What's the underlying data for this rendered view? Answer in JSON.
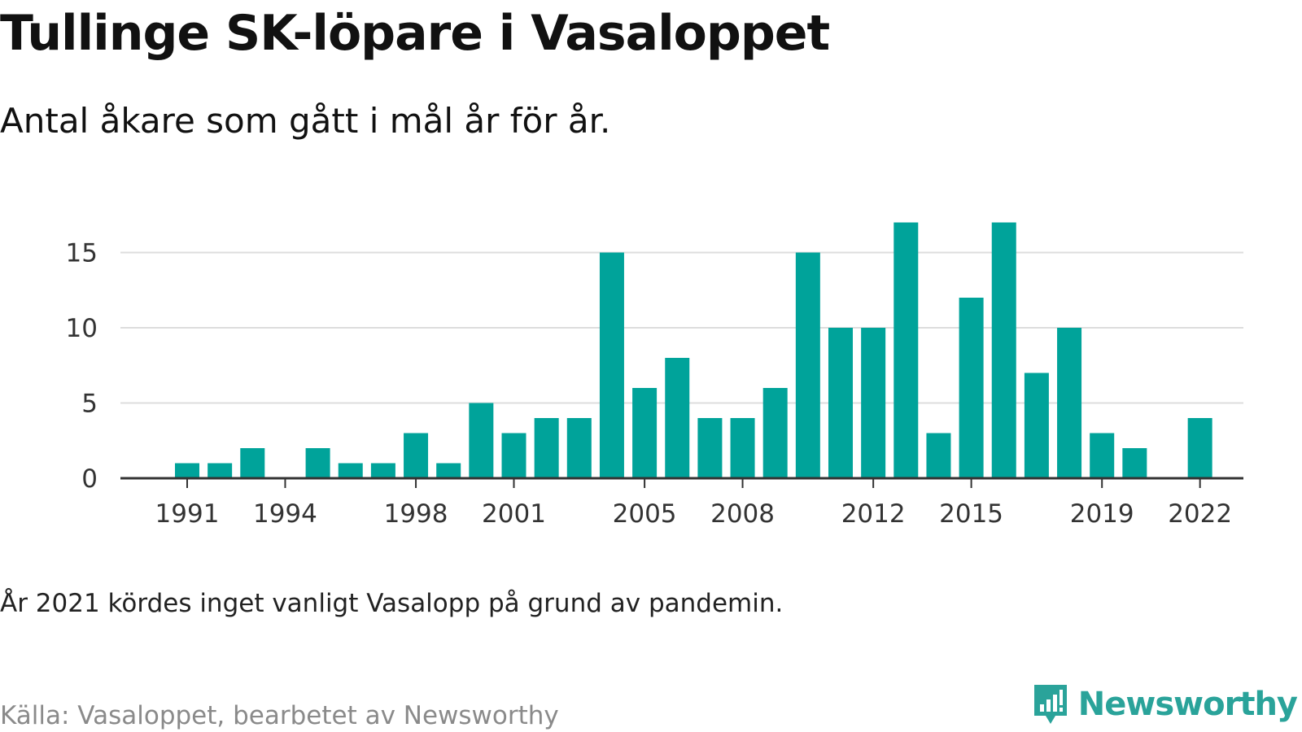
{
  "title": "Tullinge SK-löpare i Vasaloppet",
  "subtitle": "Antal åkare som gått i mål år för år.",
  "note": "År 2021 kördes inget vanligt Vasalopp på grund av pandemin.",
  "source": "Källa: Vasaloppet, bearbetet av Newsworthy",
  "brand": {
    "name": "Newsworthy",
    "icon": "newsworthy-logo-icon",
    "color": "#2aa39a"
  },
  "colors": {
    "bar": "#00a39a",
    "grid": "#dddddd",
    "axis": "#333333"
  },
  "chart_data": {
    "type": "bar",
    "x": [
      1991,
      1992,
      1993,
      1994,
      1995,
      1996,
      1997,
      1998,
      1999,
      2000,
      2001,
      2002,
      2003,
      2004,
      2005,
      2006,
      2007,
      2008,
      2009,
      2010,
      2011,
      2012,
      2013,
      2014,
      2015,
      2016,
      2017,
      2018,
      2019,
      2020,
      2021,
      2022
    ],
    "values": [
      1,
      1,
      2,
      0,
      2,
      1,
      1,
      3,
      1,
      5,
      3,
      4,
      4,
      15,
      6,
      8,
      4,
      4,
      6,
      15,
      10,
      10,
      17,
      3,
      12,
      17,
      7,
      10,
      3,
      2,
      0,
      4
    ],
    "x_ticks": [
      "1991",
      "1994",
      "1998",
      "2001",
      "2005",
      "2008",
      "2012",
      "2015",
      "2019",
      "2022"
    ],
    "y_ticks": [
      "0",
      "5",
      "10",
      "15"
    ],
    "ylim": [
      0,
      17
    ],
    "grid": "horizontal",
    "xlabel": "",
    "ylabel": ""
  }
}
